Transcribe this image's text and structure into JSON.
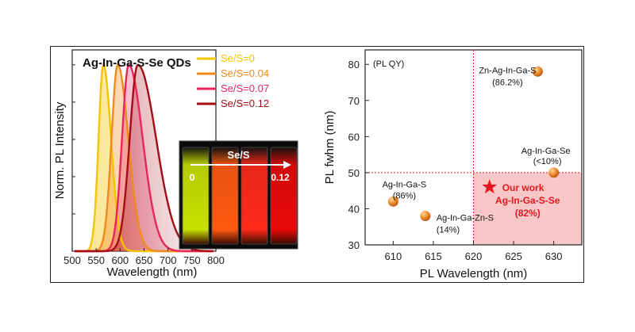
{
  "chart_data": [
    {
      "type": "line",
      "title": "Ag-In-Ga-S-Se QDs",
      "xlabel": "Wavelength (nm)",
      "ylabel": "Norm. PL Intensity",
      "xlim": [
        500,
        800
      ],
      "x_ticks": [
        "500",
        "550",
        "600",
        "650",
        "700",
        "750",
        "800"
      ],
      "ylim": [
        0,
        1.08
      ],
      "series": [
        {
          "name": "Se/S=0",
          "color": "#f5c400",
          "peak": 565,
          "width_left": 10,
          "width_right": 16,
          "values_note": "normalized emission"
        },
        {
          "name": "Se/S=0.04",
          "color": "#f08a1c",
          "peak": 595,
          "width_left": 13,
          "width_right": 22
        },
        {
          "name": "Se/S=0.07",
          "color": "#e8265c",
          "peak": 618,
          "width_left": 14,
          "width_right": 29
        },
        {
          "name": "Se/S=0.12",
          "color": "#a50d16",
          "peak": 637,
          "width_left": 17,
          "width_right": 38
        }
      ],
      "inset": {
        "label": "Se/S",
        "start": "0",
        "end": "0.12",
        "vial_colors": [
          "#c8e000",
          "#ff5a10",
          "#ff2a1a",
          "#e80a0a"
        ]
      }
    },
    {
      "type": "scatter",
      "xlabel": "PL Wavelength (nm)",
      "ylabel": "PL fwhm (nm)",
      "xlim": [
        606.5,
        633.5
      ],
      "ylim": [
        30,
        84
      ],
      "x_ticks": [
        "610",
        "615",
        "620",
        "625",
        "630"
      ],
      "y_ticks": [
        "30",
        "40",
        "50",
        "60",
        "70",
        "80"
      ],
      "legend_note": "(PL QY)",
      "reference_lines": {
        "x": 620,
        "y": 50
      },
      "highlight_color": "#f8c8c8",
      "points": [
        {
          "name": "Zn-Ag-In-Ga-S",
          "qy": "(86.2%)",
          "x": 628,
          "y": 78
        },
        {
          "name": "Ag-In-Ga-Se",
          "qy": "(<10%)",
          "x": 630,
          "y": 50
        },
        {
          "name": "Ag-In-Ga-S",
          "qy": "(86%)",
          "x": 610,
          "y": 42
        },
        {
          "name": "Ag-In-Ga-Zn-S",
          "qy": "(14%)",
          "x": 614,
          "y": 38
        }
      ],
      "star": {
        "label": "Our work",
        "name": "Ag-In-Ga-S-Se",
        "qy": "(82%)",
        "x": 622,
        "y": 46,
        "color": "#e5161d"
      }
    }
  ]
}
